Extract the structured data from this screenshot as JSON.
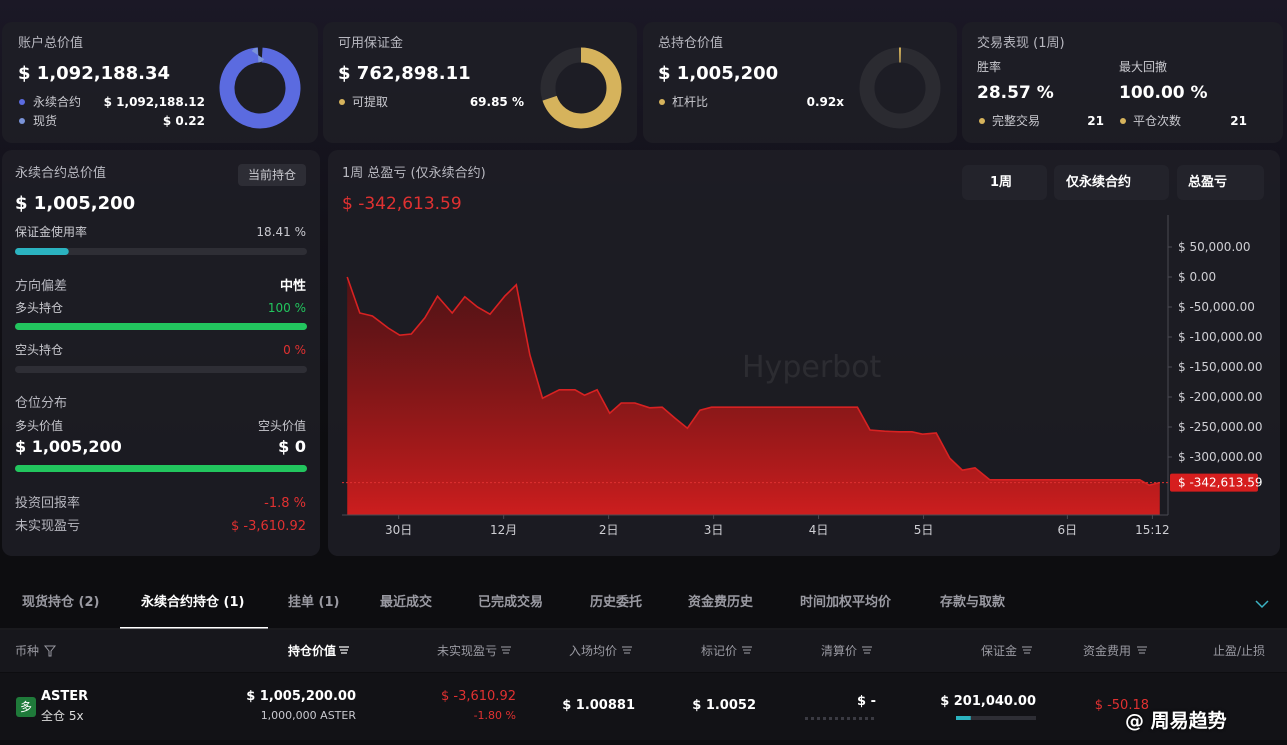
{
  "account": {
    "title": "账户总价值",
    "value": "$ 1,092,188.34",
    "perp_label": "永续合约",
    "perp_value": {
      "value": 1092188.12,
      "label": "$ 1,092,188.12"
    },
    "spot_label": "现货",
    "spot_value": {
      "value": 0.22,
      "label": "$ 0.22"
    },
    "colors": [
      "#5b6be0",
      "#7a93d8"
    ]
  },
  "margin": {
    "title": "可用保证金",
    "value": "$ 762,898.11",
    "withdraw_label": "可提取",
    "withdraw_pct": 69.85,
    "withdraw_pct_label": "69.85 %",
    "color": "#d6b35c"
  },
  "position": {
    "title": "总持仓价值",
    "value": "$ 1,005,200",
    "leverage_label": "杠杆比",
    "leverage": "0.92x"
  },
  "performance": {
    "title": "交易表现 (1周)",
    "win_rate_label": "胜率",
    "win_rate": "28.57 %",
    "max_drawdown_label": "最大回撤",
    "max_drawdown": "100.00 %",
    "complete_trades_label": "完整交易",
    "complete_trades": 21,
    "close_count_label": "平仓次数",
    "close_count": 21
  },
  "perp_panel": {
    "title": "永续合约总价值",
    "badge": "当前持仓",
    "value": "$ 1,005,200",
    "margin_usage_label": "保证金使用率",
    "margin_usage": 18.41,
    "margin_usage_text": "18.41 %",
    "bias_label": "方向偏差",
    "bias": "中性",
    "long_label": "多头持仓",
    "long_pct": 100,
    "long_pct_text": "100 %",
    "short_label": "空头持仓",
    "short_pct": 0,
    "short_pct_text": "0 %",
    "distribution_label": "仓位分布",
    "long_value_label": "多头价值",
    "short_value_label": "空头价值",
    "long_value": "$ 1,005,200",
    "short_value": "$ 0",
    "roi_label": "投资回报率",
    "roi": "-1.8 %",
    "upnl_label": "未实现盈亏",
    "upnl": "$ -3,610.92"
  },
  "pnl_chart": {
    "type": "line",
    "title": "1周 总盈亏 (仅永续合约)",
    "value_label": "$ -342,613.59",
    "filters": [
      "1周",
      "仅永续合约",
      "总盈亏"
    ],
    "watermark": "Hyperbot",
    "color": "#d82222",
    "x": [
      -0.49,
      -0.37,
      -0.25,
      -0.1,
      0.01,
      0.12,
      0.25,
      0.37,
      0.51,
      0.63,
      0.75,
      0.87,
      1.01,
      1.12,
      1.25,
      1.37,
      1.53,
      1.68,
      1.77,
      1.89,
      2.01,
      2.12,
      2.25,
      2.39,
      2.51,
      2.63,
      2.75,
      2.87,
      2.98,
      4.37,
      4.49,
      4.63,
      4.77,
      4.89,
      4.99,
      5.12,
      5.25,
      5.37,
      5.49,
      5.63,
      7.06,
      7.15,
      7.25
    ],
    "values": [
      0,
      -60000,
      -65000,
      -85000,
      -97000,
      -95000,
      -68000,
      -32000,
      -60000,
      -33000,
      -50000,
      -62000,
      -32000,
      -13000,
      -130000,
      -202000,
      -188000,
      -188000,
      -197000,
      -188000,
      -227000,
      -210000,
      -210000,
      -218000,
      -217000,
      -235000,
      -252000,
      -222000,
      -217000,
      -217000,
      -255000,
      -257000,
      -258000,
      -258000,
      -262000,
      -260000,
      -302000,
      -322000,
      -318000,
      -338000,
      -338000,
      -347000,
      -342613.59
    ],
    "xlim": [
      -0.54,
      7.3
    ],
    "xticks": [
      {
        "value": 0,
        "label": "30日"
      },
      {
        "value": 1,
        "label": "12月"
      },
      {
        "value": 2,
        "label": "2日"
      },
      {
        "value": 3,
        "label": "3日"
      },
      {
        "value": 4,
        "label": "4日"
      },
      {
        "value": 5,
        "label": "5日"
      },
      {
        "value": 6.37,
        "label": "6日"
      },
      {
        "value": 7.18,
        "label": "15:12"
      }
    ],
    "ylim": [
      -400000,
      100000
    ],
    "yticks": [
      {
        "value": 50000,
        "label": "$ 50,000.00"
      },
      {
        "value": 0,
        "label": "$ 0.00"
      },
      {
        "value": -50000,
        "label": "$ -50,000.00"
      },
      {
        "value": -100000,
        "label": "$ -100,000.00"
      },
      {
        "value": -150000,
        "label": "$ -150,000.00"
      },
      {
        "value": -200000,
        "label": "$ -200,000.00"
      },
      {
        "value": -250000,
        "label": "$ -250,000.00"
      },
      {
        "value": -300000,
        "label": "$ -300,000.00"
      }
    ]
  },
  "tabs": [
    "现货持仓 (2)",
    "永续合约持仓 (1)",
    "挂单 (1)",
    "最近成交",
    "已完成交易",
    "历史委托",
    "资金费历史",
    "时间加权平均价",
    "存款与取款"
  ],
  "active_tab": 1,
  "table": {
    "columns": [
      "币种",
      "持仓价值",
      "未实现盈亏",
      "入场均价",
      "标记价",
      "清算价",
      "保证金",
      "资金费用",
      "止盈/止损"
    ],
    "rows": [
      {
        "side": "多",
        "symbol": "ASTER",
        "margin_mode": "全仓 5x",
        "position_value": "$ 1,005,200.00",
        "size": "1,000,000 ASTER",
        "upnl": "$ -3,610.92",
        "upnl_pct": "-1.80 %",
        "entry_price": "$ 1.00881",
        "mark_price": "$ 1.0052",
        "liq_price": "$ -",
        "margin": "$ 201,040.00",
        "funding": "$ -50.18"
      }
    ]
  },
  "watermark": "@ 周易趋势"
}
